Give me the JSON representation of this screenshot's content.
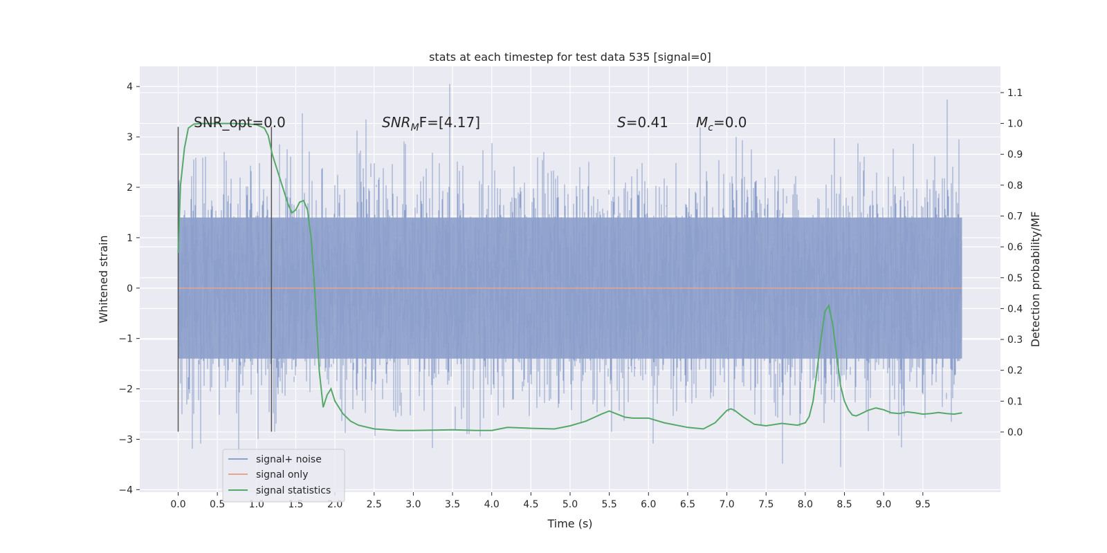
{
  "chart_data": {
    "type": "line",
    "title": "stats at each timestep for test data 535 [signal=0]",
    "xlabel": "Time (s)",
    "ylabel": "Whitened strain",
    "y2label": "Detection probability/MF",
    "xlim": [
      -0.49,
      10.49
    ],
    "ylim": [
      -4.05,
      4.4
    ],
    "y2lim": [
      -0.195,
      1.185
    ],
    "grid": true,
    "legend_position": "lower-left",
    "xticks": [
      "0.0",
      "0.5",
      "1.0",
      "1.5",
      "2.0",
      "2.5",
      "3.0",
      "3.5",
      "4.0",
      "4.5",
      "5.0",
      "5.5",
      "6.0",
      "6.5",
      "7.0",
      "7.5",
      "8.0",
      "8.5",
      "9.0",
      "9.5"
    ],
    "yticks": [
      "4",
      "3",
      "2",
      "1",
      "0",
      "−1",
      "−2",
      "−3",
      "−4"
    ],
    "y2ticks": [
      "1.1",
      "1.0",
      "0.9",
      "0.8",
      "0.7",
      "0.6",
      "0.5",
      "0.4",
      "0.3",
      "0.2",
      "0.1",
      "0.0"
    ],
    "annotations": {
      "snr_opt": "SNR_opt=0.0",
      "snr_mf_base": "SNR",
      "snr_mf_sub": "M",
      "snr_mf_rest": "F=[4.17]",
      "s_stat_var": "S",
      "s_stat_rest": "=0.41",
      "mc_base": "M",
      "mc_sub": "c",
      "mc_rest": "=0.0"
    },
    "vlines": [
      0.0,
      1.19
    ],
    "vline_range": [
      -2.85,
      3.2
    ],
    "series": [
      {
        "name": "signal+ noise",
        "color": "#8da0cb",
        "axis": "left",
        "t_range": [
          0.0,
          10.0
        ],
        "band": [
          -1.4,
          1.4
        ],
        "y_range_observed": [
          -3.7,
          4.05
        ]
      },
      {
        "name": "signal only",
        "color": "#e8a48b",
        "axis": "left",
        "x": [
          0.0,
          10.0
        ],
        "y": [
          0.0,
          0.0
        ]
      },
      {
        "name": "signal statistics",
        "color": "#55a868",
        "axis": "right",
        "x": [
          0.0,
          0.03,
          0.08,
          0.13,
          0.2,
          0.3,
          0.5,
          0.7,
          0.9,
          1.0,
          1.1,
          1.15,
          1.2,
          1.3,
          1.4,
          1.45,
          1.5,
          1.55,
          1.6,
          1.65,
          1.7,
          1.75,
          1.8,
          1.85,
          1.9,
          1.95,
          2.0,
          2.1,
          2.2,
          2.3,
          2.5,
          2.8,
          3.0,
          3.5,
          3.8,
          4.0,
          4.2,
          4.5,
          4.8,
          5.0,
          5.2,
          5.4,
          5.5,
          5.6,
          5.7,
          5.8,
          6.0,
          6.2,
          6.5,
          6.7,
          6.85,
          7.0,
          7.05,
          7.1,
          7.2,
          7.35,
          7.5,
          7.7,
          7.9,
          8.0,
          8.05,
          8.1,
          8.15,
          8.2,
          8.25,
          8.3,
          8.35,
          8.4,
          8.45,
          8.5,
          8.55,
          8.6,
          8.65,
          8.7,
          8.8,
          8.9,
          9.0,
          9.1,
          9.2,
          9.3,
          9.4,
          9.5,
          9.6,
          9.7,
          9.8,
          9.9,
          10.0
        ],
        "y": [
          0.58,
          0.8,
          0.92,
          0.985,
          0.998,
          1.0,
          1.0,
          1.0,
          0.998,
          0.996,
          0.985,
          0.96,
          0.9,
          0.82,
          0.74,
          0.71,
          0.72,
          0.745,
          0.75,
          0.72,
          0.62,
          0.43,
          0.2,
          0.08,
          0.12,
          0.14,
          0.1,
          0.06,
          0.035,
          0.022,
          0.01,
          0.005,
          0.005,
          0.007,
          0.005,
          0.005,
          0.015,
          0.012,
          0.01,
          0.02,
          0.035,
          0.058,
          0.068,
          0.058,
          0.048,
          0.045,
          0.045,
          0.03,
          0.015,
          0.01,
          0.03,
          0.07,
          0.075,
          0.07,
          0.05,
          0.025,
          0.02,
          0.028,
          0.022,
          0.03,
          0.05,
          0.1,
          0.2,
          0.3,
          0.39,
          0.41,
          0.35,
          0.25,
          0.15,
          0.1,
          0.072,
          0.055,
          0.052,
          0.058,
          0.07,
          0.078,
          0.072,
          0.062,
          0.06,
          0.065,
          0.062,
          0.058,
          0.06,
          0.063,
          0.06,
          0.058,
          0.062
        ]
      }
    ]
  }
}
